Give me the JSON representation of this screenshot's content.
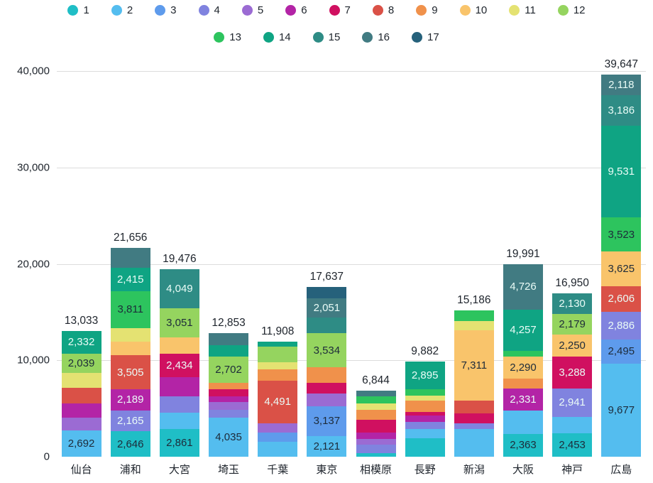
{
  "chart_data": {
    "type": "bar",
    "stacked": true,
    "legend_position": "top",
    "grid": true,
    "ylim": [
      0,
      40000
    ],
    "yticks": [
      {
        "value": 0,
        "label": "0"
      },
      {
        "value": 10000,
        "label": "10,000"
      },
      {
        "value": 20000,
        "label": "20,000"
      },
      {
        "value": 30000,
        "label": "30,000"
      },
      {
        "value": 40000,
        "label": "40,000"
      }
    ],
    "legend": [
      {
        "id": 1,
        "label": "1",
        "color": "#1FBEC6"
      },
      {
        "id": 2,
        "label": "2",
        "color": "#54BDEF"
      },
      {
        "id": 3,
        "label": "3",
        "color": "#5E9BEC"
      },
      {
        "id": 4,
        "label": "4",
        "color": "#8083DF"
      },
      {
        "id": 5,
        "label": "5",
        "color": "#9B6BD3"
      },
      {
        "id": 6,
        "label": "6",
        "color": "#B324A6"
      },
      {
        "id": 7,
        "label": "7",
        "color": "#D01060"
      },
      {
        "id": 8,
        "label": "8",
        "color": "#DA5147"
      },
      {
        "id": 9,
        "label": "9",
        "color": "#F0914B"
      },
      {
        "id": 10,
        "label": "10",
        "color": "#F9C46B"
      },
      {
        "id": 11,
        "label": "11",
        "color": "#E4E272"
      },
      {
        "id": 12,
        "label": "12",
        "color": "#95D45F"
      },
      {
        "id": 13,
        "label": "13",
        "color": "#2DC45E"
      },
      {
        "id": 14,
        "label": "14",
        "color": "#0FA483"
      },
      {
        "id": 15,
        "label": "15",
        "color": "#2E8C85"
      },
      {
        "id": 16,
        "label": "16",
        "color": "#417B82"
      },
      {
        "id": 17,
        "label": "17",
        "color": "#26617B"
      }
    ],
    "legend_rows": [
      12,
      5
    ],
    "dark_text_series": [
      1,
      2,
      3,
      9,
      10,
      11,
      12,
      13
    ],
    "text_colors": {
      "dark": "#1d2b3a",
      "light": "#eafcf7"
    },
    "categories": [
      "仙台",
      "浦和",
      "大宮",
      "埼玉",
      "千葉",
      "東京",
      "相模原",
      "長野",
      "新潟",
      "大阪",
      "神戸",
      "広島"
    ],
    "bars": [
      {
        "city": "仙台",
        "total": 13033,
        "total_label": "13,033",
        "segments": [
          {
            "c": 2,
            "v": 2692,
            "label": "2,692"
          },
          {
            "c": 5,
            "v": 1350,
            "label": ""
          },
          {
            "c": 6,
            "v": 1500,
            "label": ""
          },
          {
            "c": 8,
            "v": 1600,
            "label": ""
          },
          {
            "c": 11,
            "v": 1520,
            "label": ""
          },
          {
            "c": 12,
            "v": 2039,
            "label": "2,039"
          },
          {
            "c": 14,
            "v": 2332,
            "label": "2,332"
          }
        ]
      },
      {
        "city": "浦和",
        "total": 21656,
        "total_label": "21,656",
        "segments": [
          {
            "c": 1,
            "v": 2646,
            "label": "2,646"
          },
          {
            "c": 4,
            "v": 2165,
            "label": "2,165"
          },
          {
            "c": 6,
            "v": 2189,
            "label": "2,189"
          },
          {
            "c": 8,
            "v": 3505,
            "label": "3,505"
          },
          {
            "c": 10,
            "v": 1400,
            "label": ""
          },
          {
            "c": 11,
            "v": 1450,
            "label": ""
          },
          {
            "c": 13,
            "v": 3811,
            "label": "3,811"
          },
          {
            "c": 14,
            "v": 2415,
            "label": "2,415"
          },
          {
            "c": 16,
            "v": 2075,
            "label": ""
          }
        ]
      },
      {
        "city": "大宮",
        "total": 19476,
        "total_label": "19,476",
        "segments": [
          {
            "c": 1,
            "v": 2861,
            "label": "2,861"
          },
          {
            "c": 2,
            "v": 1700,
            "label": ""
          },
          {
            "c": 4,
            "v": 1700,
            "label": ""
          },
          {
            "c": 6,
            "v": 1990,
            "label": ""
          },
          {
            "c": 7,
            "v": 2434,
            "label": "2,434"
          },
          {
            "c": 10,
            "v": 1691,
            "label": ""
          },
          {
            "c": 12,
            "v": 3051,
            "label": "3,051"
          },
          {
            "c": 15,
            "v": 4049,
            "label": "4,049"
          }
        ]
      },
      {
        "city": "埼玉",
        "total": 12853,
        "total_label": "12,853",
        "segments": [
          {
            "c": 2,
            "v": 4035,
            "label": "4,035"
          },
          {
            "c": 4,
            "v": 800,
            "label": ""
          },
          {
            "c": 5,
            "v": 850,
            "label": ""
          },
          {
            "c": 6,
            "v": 550,
            "label": ""
          },
          {
            "c": 7,
            "v": 750,
            "label": ""
          },
          {
            "c": 9,
            "v": 700,
            "label": ""
          },
          {
            "c": 12,
            "v": 2702,
            "label": "2,702"
          },
          {
            "c": 14,
            "v": 1200,
            "label": ""
          },
          {
            "c": 16,
            "v": 1266,
            "label": ""
          }
        ]
      },
      {
        "city": "千葉",
        "total": 11908,
        "total_label": "11,908",
        "segments": [
          {
            "c": 2,
            "v": 1550,
            "label": ""
          },
          {
            "c": 3,
            "v": 950,
            "label": ""
          },
          {
            "c": 5,
            "v": 930,
            "label": ""
          },
          {
            "c": 8,
            "v": 4491,
            "label": "4,491"
          },
          {
            "c": 9,
            "v": 1170,
            "label": ""
          },
          {
            "c": 11,
            "v": 680,
            "label": ""
          },
          {
            "c": 12,
            "v": 1630,
            "label": ""
          },
          {
            "c": 14,
            "v": 507,
            "label": ""
          }
        ]
      },
      {
        "city": "東京",
        "total": 17637,
        "total_label": "17,637",
        "segments": [
          {
            "c": 2,
            "v": 2121,
            "label": "2,121"
          },
          {
            "c": 3,
            "v": 3137,
            "label": "3,137"
          },
          {
            "c": 5,
            "v": 1276,
            "label": ""
          },
          {
            "c": 7,
            "v": 1100,
            "label": ""
          },
          {
            "c": 9,
            "v": 1620,
            "label": ""
          },
          {
            "c": 12,
            "v": 3534,
            "label": "3,534"
          },
          {
            "c": 15,
            "v": 1620,
            "label": ""
          },
          {
            "c": 16,
            "v": 2051,
            "label": "2,051"
          },
          {
            "c": 17,
            "v": 1178,
            "label": ""
          }
        ]
      },
      {
        "city": "相模原",
        "total": 6844,
        "total_label": "6,844",
        "segments": [
          {
            "c": 1,
            "v": 370,
            "label": ""
          },
          {
            "c": 4,
            "v": 900,
            "label": ""
          },
          {
            "c": 5,
            "v": 574,
            "label": ""
          },
          {
            "c": 6,
            "v": 700,
            "label": ""
          },
          {
            "c": 7,
            "v": 1300,
            "label": ""
          },
          {
            "c": 9,
            "v": 1000,
            "label": ""
          },
          {
            "c": 11,
            "v": 700,
            "label": ""
          },
          {
            "c": 13,
            "v": 700,
            "label": ""
          },
          {
            "c": 16,
            "v": 600,
            "label": ""
          }
        ]
      },
      {
        "city": "長野",
        "total": 9882,
        "total_label": "9,882",
        "segments": [
          {
            "c": 1,
            "v": 1900,
            "label": ""
          },
          {
            "c": 2,
            "v": 950,
            "label": ""
          },
          {
            "c": 4,
            "v": 750,
            "label": ""
          },
          {
            "c": 6,
            "v": 700,
            "label": ""
          },
          {
            "c": 7,
            "v": 350,
            "label": ""
          },
          {
            "c": 9,
            "v": 1200,
            "label": ""
          },
          {
            "c": 11,
            "v": 500,
            "label": ""
          },
          {
            "c": 13,
            "v": 637,
            "label": ""
          },
          {
            "c": 14,
            "v": 2895,
            "label": "2,895"
          }
        ]
      },
      {
        "city": "新潟",
        "total": 15186,
        "total_label": "15,186",
        "segments": [
          {
            "c": 2,
            "v": 2900,
            "label": ""
          },
          {
            "c": 4,
            "v": 600,
            "label": ""
          },
          {
            "c": 7,
            "v": 1000,
            "label": ""
          },
          {
            "c": 8,
            "v": 1325,
            "label": ""
          },
          {
            "c": 10,
            "v": 7311,
            "label": "7,311"
          },
          {
            "c": 11,
            "v": 950,
            "label": ""
          },
          {
            "c": 13,
            "v": 1100,
            "label": ""
          }
        ]
      },
      {
        "city": "大阪",
        "total": 19991,
        "total_label": "19,991",
        "segments": [
          {
            "c": 1,
            "v": 2363,
            "label": "2,363"
          },
          {
            "c": 2,
            "v": 2400,
            "label": ""
          },
          {
            "c": 6,
            "v": 2331,
            "label": "2,331"
          },
          {
            "c": 9,
            "v": 1034,
            "label": ""
          },
          {
            "c": 10,
            "v": 2290,
            "label": "2,290"
          },
          {
            "c": 13,
            "v": 590,
            "label": ""
          },
          {
            "c": 14,
            "v": 4257,
            "label": "4,257"
          },
          {
            "c": 16,
            "v": 4726,
            "label": "4,726"
          }
        ]
      },
      {
        "city": "神戸",
        "total": 16950,
        "total_label": "16,950",
        "segments": [
          {
            "c": 1,
            "v": 2453,
            "label": "2,453"
          },
          {
            "c": 2,
            "v": 1709,
            "label": ""
          },
          {
            "c": 4,
            "v": 2941,
            "label": "2,941"
          },
          {
            "c": 7,
            "v": 3288,
            "label": "3,288"
          },
          {
            "c": 10,
            "v": 2250,
            "label": "2,250"
          },
          {
            "c": 12,
            "v": 2179,
            "label": "2,179"
          },
          {
            "c": 15,
            "v": 2130,
            "label": "2,130"
          }
        ]
      },
      {
        "city": "広島",
        "total": 39647,
        "total_label": "39,647",
        "segments": [
          {
            "c": 2,
            "v": 9677,
            "label": "9,677"
          },
          {
            "c": 3,
            "v": 2495,
            "label": "2,495"
          },
          {
            "c": 4,
            "v": 2886,
            "label": "2,886"
          },
          {
            "c": 8,
            "v": 2606,
            "label": "2,606"
          },
          {
            "c": 10,
            "v": 3625,
            "label": "3,625"
          },
          {
            "c": 13,
            "v": 3523,
            "label": "3,523"
          },
          {
            "c": 14,
            "v": 9531,
            "label": "9,531"
          },
          {
            "c": 15,
            "v": 3186,
            "label": "3,186"
          },
          {
            "c": 16,
            "v": 2118,
            "label": "2,118"
          }
        ]
      }
    ]
  }
}
